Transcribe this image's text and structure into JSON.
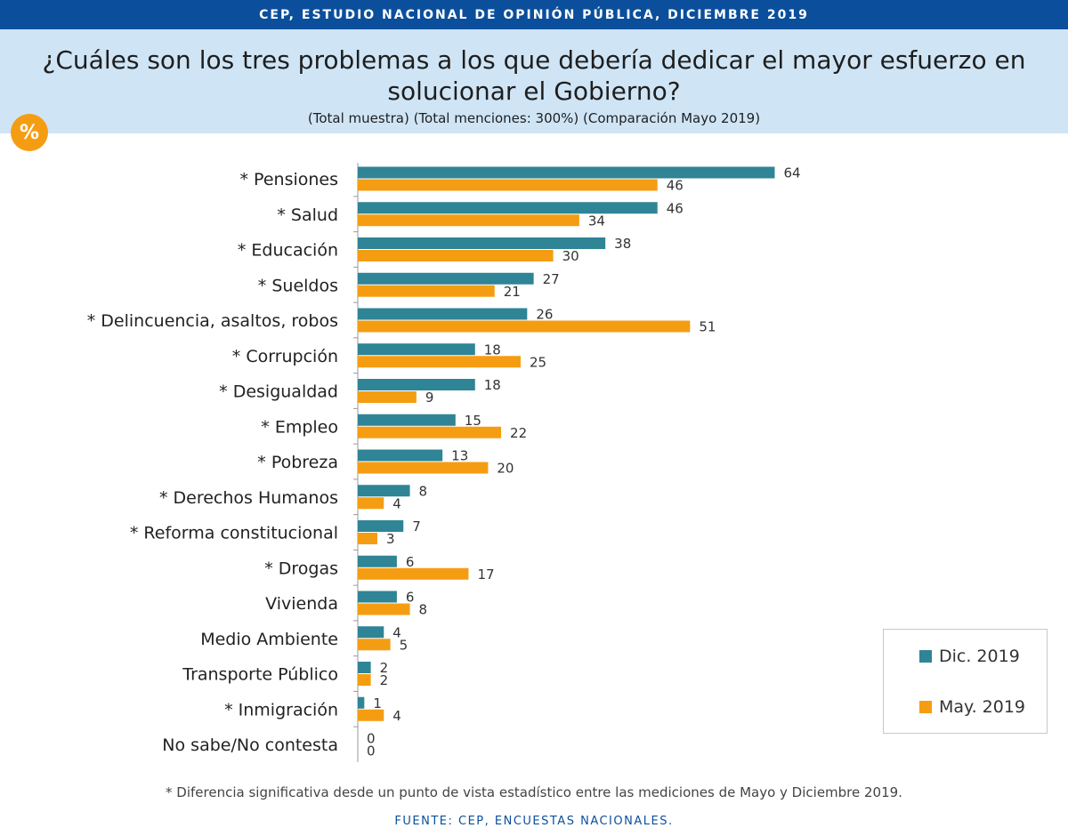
{
  "header": {
    "top_banner": "CEP, ESTUDIO NACIONAL DE OPINIÓN PÚBLICA, DICIEMBRE 2019",
    "title": "¿Cuáles son los tres problemas a los que debería dedicar el mayor esfuerzo en solucionar el Gobierno?",
    "subtitle": "(Total muestra) (Total menciones: 300%) (Comparación Mayo 2019)",
    "badge": "%"
  },
  "colors": {
    "banner": "#0b4f9c",
    "header_bg": "#cfe5f6",
    "badge": "#f59d12",
    "dic_2019": "#2f8496",
    "may_2019": "#f59d12"
  },
  "chart_data": {
    "type": "bar",
    "orientation": "horizontal",
    "categories": [
      "* Pensiones",
      "* Salud",
      "* Educación",
      "* Sueldos",
      "* Delincuencia, asaltos, robos",
      "* Corrupción",
      "* Desigualdad",
      "* Empleo",
      "* Pobreza",
      "* Derechos Humanos",
      "* Reforma constitucional",
      "* Drogas",
      "Vivienda",
      "Medio Ambiente",
      "Transporte Público",
      "* Inmigración",
      "No sabe/No contesta"
    ],
    "series": [
      {
        "name": "Dic. 2019",
        "color": "#2f8496",
        "values": [
          64,
          46,
          38,
          27,
          26,
          18,
          18,
          15,
          13,
          8,
          7,
          6,
          6,
          4,
          2,
          1,
          0
        ]
      },
      {
        "name": "May. 2019",
        "color": "#f59d12",
        "values": [
          46,
          34,
          30,
          21,
          51,
          25,
          9,
          22,
          20,
          4,
          3,
          17,
          8,
          5,
          2,
          4,
          0
        ]
      }
    ],
    "xlim": [
      0,
      70
    ],
    "grid": false,
    "legend_position": "bottom-right",
    "data_labels": true
  },
  "footer": {
    "note": "* Diferencia significativa desde un punto de vista estadístico entre las mediciones de Mayo y Diciembre 2019.",
    "source": "FUENTE: CEP, ENCUESTAS NACIONALES."
  }
}
